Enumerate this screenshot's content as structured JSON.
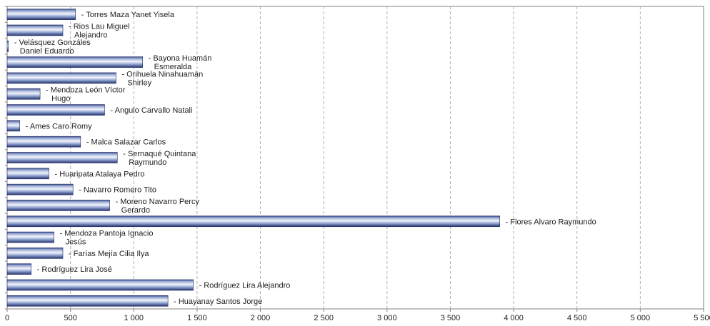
{
  "chart_data": {
    "type": "bar",
    "orientation": "horizontal",
    "title": "",
    "xlabel": "",
    "ylabel": "",
    "xlim": [
      0,
      5500
    ],
    "grid": "vertical dashed",
    "legend": "none",
    "x_ticks": [
      "0",
      "500",
      "1 000",
      "1 500",
      "2 000",
      "2 500",
      "3 000",
      "3 500",
      "4 000",
      "4 500",
      "5 000",
      "5 500"
    ],
    "categories": [
      "- Torres Maza Yanet Yisela",
      "- Rios Lau Miguel Alejandro",
      "- Velásquez Gonzáles Daniel Eduardo",
      "- Bayona Huamán Esmeralda",
      "- Orihuela Ninahuamán Shirley",
      "- Mendoza León Víctor Hugo",
      "- Angulo Carvallo Natali",
      "- Ames Caro Romy",
      "- Malca Salazar Carlos",
      "- Sernaqué Quintana Raymundo",
      "- Huaripata Atalaya Pedro",
      "- Navarro Romero Tito",
      "- Moreno Navarro Percy Gerardo",
      "- Flores Alvaro Raymundo",
      "- Mendoza Pantoja Ignacio Jesús",
      "- Farías Mejía Cilia Ilya",
      "- Rodríguez Lira José",
      "- Rodríguez Lira Alejandro",
      "- Huayanay Santos Jorge"
    ],
    "label_lines": [
      [
        "- Torres Maza Yanet Yisela"
      ],
      [
        "- Rios Lau Miguel",
        "Alejandro"
      ],
      [
        "- Velásquez Gonzáles",
        "Daniel Eduardo"
      ],
      [
        "- Bayona Huamán",
        "Esmeralda"
      ],
      [
        "- Orihuela Ninahuamán",
        "Shirley"
      ],
      [
        "- Mendoza León Víctor",
        "Hugo"
      ],
      [
        "- Angulo Carvallo Natali"
      ],
      [
        "- Ames Caro Romy"
      ],
      [
        "- Malca Salazar Carlos"
      ],
      [
        "- Sernaqué Quintana",
        "Raymundo"
      ],
      [
        "- Huaripata Atalaya Pedro"
      ],
      [
        "- Navarro Romero Tito"
      ],
      [
        "- Moreno Navarro Percy",
        "Gerardo"
      ],
      [
        "- Flores Alvaro Raymundo"
      ],
      [
        "- Mendoza Pantoja Ignacio",
        "Jesús"
      ],
      [
        "- Farías Mejía Cilia Ilya"
      ],
      [
        "- Rodríguez Lira José"
      ],
      [
        "- Rodríguez Lira Alejandro"
      ],
      [
        "- Huayanay Santos Jorge"
      ]
    ],
    "values": [
      540,
      440,
      10,
      1070,
      860,
      260,
      770,
      100,
      580,
      870,
      330,
      520,
      810,
      3890,
      370,
      440,
      190,
      1470,
      1270
    ],
    "colors": {
      "bar_dark": "#2b3a7a",
      "bar_light": "#eef1f8",
      "bar_mid": "#7f95c8",
      "grid": "#b0b0b0",
      "axis": "#808080"
    }
  }
}
